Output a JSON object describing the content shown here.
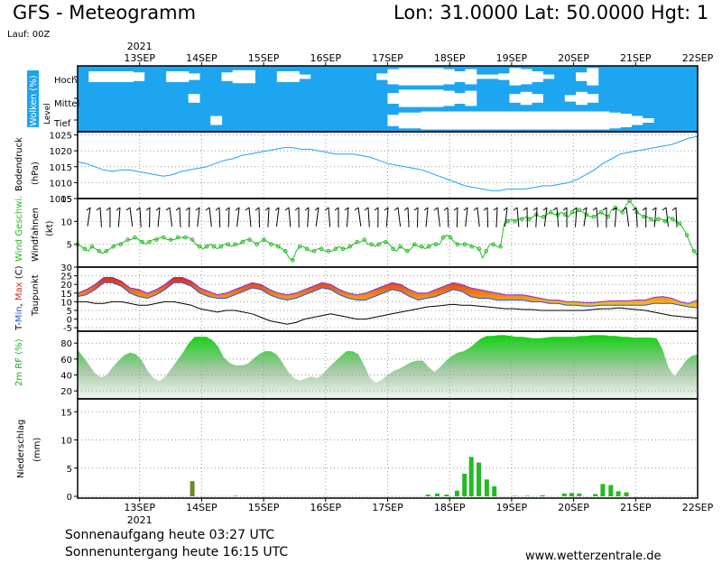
{
  "header": {
    "title": "GFS - Meteogramm",
    "location": "Lon: 31.0000 Lat: 50.0000 Hgt: 1"
  },
  "run": "Lauf: 00Z",
  "year": "2021",
  "dates": [
    "13SEP",
    "14SEP",
    "15SEP",
    "16SEP",
    "17SEP",
    "18SEP",
    "19SEP",
    "20SEP",
    "21SEP",
    "22SEP"
  ],
  "footer": {
    "sunrise": "Sonnenaufgang heute 03:27 UTC",
    "sunset": "Sonnenuntergang heute 16:15 UTC",
    "url": "www.wetterzentrale.de"
  },
  "colors": {
    "cloud": "#1ea5f0",
    "pressure": "#1ea5f0",
    "wind": "#22bb22",
    "rh": "#22cc22",
    "precip_rain": "#22bb22",
    "precip_mixed": "#6a8a2a",
    "dewpoint": "#000000"
  },
  "chart_data": [
    {
      "type": "heatmap",
      "ylabel": "Wolken (%)",
      "ylabel2": "Level",
      "levels": [
        "Hoch",
        "Mittel",
        "Tief"
      ],
      "note": "cloud cover fraction per level, 3-hourly",
      "hoch": [
        1,
        0.5,
        0.5,
        0.5,
        0.5,
        0.6,
        1,
        1,
        0.5,
        0.5,
        0.7,
        1,
        1,
        0.6,
        0.4,
        0.4,
        1,
        1,
        0.5,
        0.5,
        0.8,
        1,
        1,
        1,
        1,
        1,
        1,
        0.7,
        0.3,
        0.2,
        0.2,
        0.2,
        0.2,
        0.3,
        0.5,
        0.3,
        0.8,
        0.8,
        0.7,
        0.2,
        0.3,
        0.5,
        0.8,
        1,
        1,
        0.6,
        0.2,
        1,
        1,
        1,
        1,
        1,
        1,
        1,
        1,
        1
      ],
      "mittel": [
        1,
        1,
        1,
        1,
        1,
        1,
        1,
        1,
        1,
        1,
        0.6,
        1,
        1,
        1,
        1,
        1,
        1,
        1,
        1,
        1,
        1,
        1,
        1,
        1,
        1,
        1,
        1,
        1,
        0.5,
        0.2,
        0.2,
        0.2,
        0.2,
        0.3,
        0.5,
        0.3,
        1,
        1,
        1,
        0.6,
        0.4,
        0.6,
        1,
        1,
        0.7,
        0.4,
        0.6,
        1,
        1,
        1,
        1,
        1,
        1,
        1,
        1,
        1
      ],
      "tief": [
        1,
        1,
        1,
        1,
        1,
        1,
        1,
        1,
        1,
        1,
        1,
        1,
        0.6,
        1,
        1,
        1,
        1,
        1,
        1,
        1,
        1,
        1,
        1,
        1,
        1,
        1,
        1,
        1,
        0.5,
        0.3,
        0.3,
        0.2,
        0.2,
        0.2,
        0.2,
        0.2,
        0.2,
        0.2,
        0.2,
        0.2,
        0.2,
        0.2,
        0.2,
        0.2,
        0.2,
        0.2,
        0.2,
        0.2,
        0.3,
        0.4,
        0.6,
        0.8,
        1,
        1,
        1,
        1
      ]
    },
    {
      "type": "line",
      "ylabel": "Bodendruck (hPa)",
      "ylim": [
        1005,
        1026
      ],
      "ticks": [
        1005,
        1010,
        1015,
        1020,
        1025
      ],
      "values": [
        1016.5,
        1016,
        1015,
        1014,
        1013.5,
        1014,
        1014,
        1013.5,
        1013,
        1012.5,
        1012,
        1012.5,
        1013.5,
        1014,
        1014.5,
        1015,
        1016,
        1017,
        1017.5,
        1018.5,
        1019,
        1019.5,
        1020,
        1020.5,
        1021,
        1021,
        1020.5,
        1020.5,
        1020,
        1019.5,
        1019,
        1019,
        1019,
        1018.5,
        1018,
        1017,
        1016,
        1015.5,
        1015,
        1014.5,
        1014,
        1013,
        1012,
        1011,
        1010,
        1009,
        1008.5,
        1008,
        1007.5,
        1007.5,
        1008,
        1008,
        1008,
        1008.5,
        1009,
        1009,
        1009.5,
        1010,
        1011,
        1012.5,
        1014,
        1016,
        1017.5,
        1019,
        1019.5,
        1020,
        1020.5,
        1021,
        1021.5,
        1022,
        1023,
        1024,
        1024.5
      ]
    },
    {
      "type": "line",
      "ylabel": "Wind Geschwi. (kt)",
      "ylabel2": "Windfahnen",
      "ylim": [
        0,
        15
      ],
      "ticks": [
        5,
        10,
        15
      ],
      "values": [
        5,
        4.5,
        4,
        3.5,
        4.5,
        4,
        3.5,
        3,
        3.5,
        4,
        4.5,
        5,
        5,
        5.5,
        6,
        6,
        6.5,
        6,
        5.5,
        5,
        5.5,
        6,
        6,
        6.5,
        6.5,
        6,
        6,
        6,
        6.5,
        6.5,
        6.5,
        6.5,
        6,
        5,
        4.5,
        4,
        4.5,
        5,
        4.5,
        4,
        4.5,
        5,
        5,
        4.5,
        5,
        5,
        5.5,
        6,
        6,
        5.5,
        5,
        5.5,
        6,
        5.5,
        5,
        5,
        4.5,
        4,
        3.5,
        2,
        1.5,
        3.5,
        4.5,
        4.5,
        4,
        3.5,
        3.5,
        4,
        4,
        3.5,
        3.5,
        3.5,
        4,
        4.5,
        4,
        4,
        4.5,
        5,
        5.5,
        5.5,
        6,
        5,
        5,
        4.5,
        5,
        5.5,
        5.5,
        5,
        4,
        3.5,
        4.5,
        4,
        3.5,
        4,
        5,
        4.5,
        4.5,
        4,
        4.5,
        5,
        5,
        5,
        6.5,
        7,
        6.5,
        5.5,
        5,
        5,
        5,
        5,
        4.5,
        4.5,
        4,
        2,
        3.5,
        5,
        5,
        4.5,
        4.5,
        9.5,
        10,
        10.5,
        10,
        10.5,
        10.5,
        11,
        10.5,
        11,
        11.5,
        11,
        11,
        11.5,
        12,
        11.5,
        11.5,
        12,
        11.5,
        11,
        12,
        12,
        12.5,
        12,
        11.5,
        11,
        11,
        11.5,
        12,
        11.5,
        11,
        12.5,
        13,
        12.5,
        12,
        13.5,
        14.5,
        13.5,
        12,
        11.5,
        11,
        11,
        10.5,
        10,
        10.5,
        10.5,
        10,
        11,
        10.5,
        10,
        9.5,
        8.5,
        7,
        5,
        3.5,
        2.5
      ]
    },
    {
      "type": "line",
      "ylabel": "T-Min, Max (C)",
      "ylabel2": "Taupunkt",
      "ylim": [
        -7,
        30
      ],
      "ticks": [
        -5,
        0,
        5,
        10,
        15,
        20,
        25,
        30
      ],
      "tmax": [
        15,
        17,
        20,
        24,
        24,
        22,
        18,
        17,
        15,
        17,
        20,
        24,
        24,
        22,
        18,
        16,
        14,
        15,
        17,
        19,
        21,
        20,
        17,
        15,
        14,
        15,
        17,
        19,
        21,
        20,
        17,
        15,
        14,
        15,
        17,
        19,
        21,
        20,
        17,
        15,
        15,
        17,
        19,
        21,
        20,
        18,
        17,
        16,
        15,
        14,
        14,
        14,
        13,
        12,
        11,
        11,
        10,
        10,
        9.5,
        9.5,
        10,
        10.5,
        10.5,
        10.5,
        11,
        11,
        12.5,
        13,
        12,
        10,
        9,
        11
      ],
      "tmin": [
        13,
        14,
        17,
        21,
        21,
        19,
        15,
        13,
        12,
        14,
        17,
        21,
        21,
        19,
        15,
        13,
        12,
        12,
        14,
        16,
        18,
        17,
        14,
        12,
        11,
        12,
        14,
        16,
        18,
        17,
        14,
        12,
        11,
        11,
        13,
        15,
        17,
        16,
        13,
        11,
        12,
        13,
        15,
        17,
        16,
        13,
        12,
        12,
        11,
        11,
        11,
        11,
        10,
        10,
        9,
        9,
        8,
        8,
        7.5,
        7.5,
        8,
        8,
        8,
        8,
        8,
        8,
        9,
        9,
        9,
        8,
        7,
        6.5
      ],
      "dewpoint": [
        10,
        10,
        9,
        9,
        10,
        10,
        9,
        8,
        8,
        9,
        10,
        10,
        9,
        8,
        6,
        5,
        4,
        5,
        5,
        4,
        3,
        1,
        -1,
        -2,
        -3,
        -2,
        0,
        1,
        2,
        3,
        2,
        1,
        0,
        0,
        1,
        2,
        3,
        4,
        5,
        6,
        7,
        7.5,
        8,
        8.5,
        8,
        8,
        7.5,
        7,
        6.5,
        6,
        6,
        5.5,
        5.5,
        5,
        5,
        5,
        5,
        5,
        5,
        5.5,
        6,
        6,
        6.5,
        6,
        5.5,
        5,
        4,
        3,
        2,
        1.5,
        1,
        0.5
      ]
    },
    {
      "type": "area",
      "ylabel": "2m RF (%)",
      "ylim": [
        10,
        95
      ],
      "ticks": [
        20,
        40,
        60,
        80
      ],
      "values": [
        72,
        62,
        52,
        42,
        37,
        40,
        50,
        58,
        65,
        68,
        66,
        58,
        45,
        36,
        32,
        38,
        48,
        58,
        68,
        80,
        88,
        88,
        88,
        84,
        76,
        62,
        55,
        52,
        52,
        54,
        60,
        66,
        70,
        70,
        66,
        56,
        44,
        36,
        33,
        36,
        38,
        36,
        42,
        50,
        57,
        64,
        70,
        70,
        66,
        52,
        36,
        30,
        34,
        40,
        45,
        48,
        52,
        56,
        58,
        58,
        50,
        44,
        50,
        58,
        64,
        68,
        70,
        74,
        80,
        86,
        89,
        89,
        90,
        90,
        89,
        88,
        88,
        87,
        86,
        86,
        87,
        88,
        88,
        88,
        88,
        88,
        89,
        89,
        90,
        90,
        90,
        89,
        89,
        88,
        88,
        87,
        87,
        87,
        87,
        86,
        72,
        50,
        38,
        48,
        58,
        64,
        66
      ]
    },
    {
      "type": "bar",
      "ylabel": "Niederschlag (mm)",
      "ylim": [
        0,
        16
      ],
      "ticks": [
        0,
        5,
        10,
        15
      ],
      "bars": [
        {
          "day": 1.85,
          "value": 2.7,
          "kind": "mixed"
        },
        {
          "day": 2.55,
          "value": 0.1,
          "kind": "rain"
        },
        {
          "day": 5.65,
          "value": 0.3,
          "kind": "rain"
        },
        {
          "day": 5.8,
          "value": 0.5,
          "kind": "rain"
        },
        {
          "day": 5.95,
          "value": 0.3,
          "kind": "rain"
        },
        {
          "day": 6.12,
          "value": 1.0,
          "kind": "rain"
        },
        {
          "day": 6.24,
          "value": 4.0,
          "kind": "rain"
        },
        {
          "day": 6.35,
          "value": 7.0,
          "kind": "rain"
        },
        {
          "day": 6.47,
          "value": 6.0,
          "kind": "rain"
        },
        {
          "day": 6.6,
          "value": 3.0,
          "kind": "rain"
        },
        {
          "day": 6.72,
          "value": 1.8,
          "kind": "rain"
        },
        {
          "day": 7.05,
          "value": 0.1,
          "kind": "rain"
        },
        {
          "day": 7.25,
          "value": 0.1,
          "kind": "rain"
        },
        {
          "day": 7.5,
          "value": 0.2,
          "kind": "rain"
        },
        {
          "day": 7.85,
          "value": 0.5,
          "kind": "rain"
        },
        {
          "day": 7.97,
          "value": 0.6,
          "kind": "rain"
        },
        {
          "day": 8.09,
          "value": 0.5,
          "kind": "rain"
        },
        {
          "day": 8.35,
          "value": 0.4,
          "kind": "rain"
        },
        {
          "day": 8.47,
          "value": 2.2,
          "kind": "rain"
        },
        {
          "day": 8.6,
          "value": 2.0,
          "kind": "rain"
        },
        {
          "day": 8.72,
          "value": 0.9,
          "kind": "rain"
        },
        {
          "day": 8.85,
          "value": 0.7,
          "kind": "rain"
        }
      ]
    }
  ]
}
